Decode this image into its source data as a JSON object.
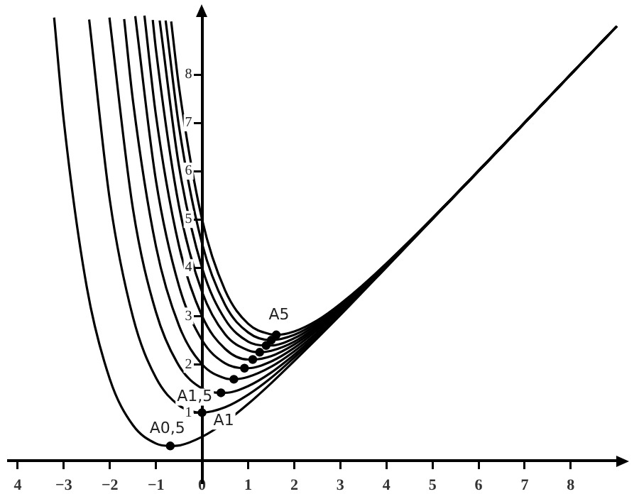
{
  "chart_data": {
    "type": "line",
    "xlim": [
      -4.2,
      9.05
    ],
    "ylim": [
      -0.45,
      9.25
    ],
    "xticks": [
      {
        "value": -4,
        "label": "4"
      },
      {
        "value": -3,
        "label": "−3"
      },
      {
        "value": -2,
        "label": "−2"
      },
      {
        "value": -1,
        "label": "−1"
      },
      0,
      1,
      2,
      3,
      4,
      5,
      6,
      7,
      8
    ],
    "yticks": [
      1,
      2,
      3,
      4,
      5,
      6,
      7,
      8
    ],
    "grid": false,
    "legend": false,
    "line_style": "solid",
    "series": [
      {
        "color": "#000000",
        "x": [
          -3.21,
          -3,
          -2.5,
          -2,
          -1.5,
          -1,
          -0.69,
          -0.5,
          0,
          0.5,
          1,
          1.5,
          2,
          2.5,
          3,
          4,
          9
        ],
        "values": [
          9.18,
          7.04,
          3.59,
          1.69,
          0.74,
          0.36,
          0.31,
          0.32,
          0.5,
          0.8,
          1.18,
          1.61,
          2.07,
          2.54,
          3.02,
          4.01,
          9
        ]
      },
      {
        "color": "#000000",
        "x": [
          -2.45,
          -2,
          -1.5,
          -1,
          -0.5,
          0,
          0.5,
          1,
          1.5,
          2,
          2.5,
          3,
          4,
          9
        ],
        "values": [
          9.14,
          5.39,
          2.98,
          1.72,
          1.15,
          1,
          1.11,
          1.37,
          1.72,
          2.14,
          2.58,
          3.05,
          4.02,
          9
        ]
      },
      {
        "color": "#000000",
        "x": [
          -2.01,
          -1.5,
          -1,
          -0.5,
          0,
          0.41,
          0.5,
          1,
          1.5,
          2,
          2.5,
          3,
          4,
          9
        ],
        "values": [
          9.18,
          5.22,
          3.08,
          1.97,
          1.5,
          1.41,
          1.41,
          1.55,
          1.83,
          2.2,
          2.62,
          3.07,
          4.03,
          9
        ]
      },
      {
        "color": "#000000",
        "x": [
          -1.69,
          -1.5,
          -1,
          -0.5,
          0,
          0.5,
          0.69,
          1,
          1.5,
          2,
          2.5,
          3,
          4,
          9
        ],
        "values": [
          9.15,
          7.46,
          4.44,
          2.8,
          2,
          1.71,
          1.69,
          1.74,
          1.95,
          2.27,
          2.66,
          3.1,
          4.04,
          9
        ]
      },
      {
        "color": "#000000",
        "x": [
          -1.45,
          -1,
          -0.5,
          0,
          0.5,
          0.92,
          1,
          1.5,
          2,
          2.5,
          3,
          4,
          9
        ],
        "values": [
          9.21,
          5.8,
          3.62,
          2.5,
          2.02,
          1.92,
          1.92,
          2.06,
          2.34,
          2.71,
          3.12,
          4.05,
          9
        ]
      },
      {
        "color": "#000000",
        "x": [
          -1.25,
          -1,
          -0.5,
          0,
          0.5,
          1,
          1.1,
          1.5,
          2,
          2.5,
          3,
          4,
          9
        ],
        "values": [
          9.22,
          7.15,
          4.45,
          3,
          2.32,
          2.1,
          2.1,
          2.17,
          2.41,
          2.75,
          3.15,
          4.05,
          9
        ]
      },
      {
        "color": "#000000",
        "x": [
          -1.07,
          -1,
          -0.5,
          0,
          0.5,
          1,
          1.25,
          1.5,
          2,
          2.5,
          3,
          4,
          9
        ],
        "values": [
          9.13,
          8.51,
          5.27,
          3.5,
          2.62,
          2.29,
          2.25,
          2.28,
          2.47,
          2.79,
          3.17,
          4.06,
          9
        ]
      },
      {
        "color": "#000000",
        "x": [
          -0.92,
          -0.5,
          0,
          0.5,
          1,
          1.39,
          1.5,
          2,
          2.5,
          3,
          4,
          9
        ],
        "values": [
          9.12,
          6.1,
          4,
          2.93,
          2.47,
          2.39,
          2.39,
          2.54,
          2.83,
          3.2,
          4.07,
          9
        ]
      },
      {
        "color": "#000000",
        "x": [
          -0.79,
          -0.5,
          0,
          0.5,
          1,
          1.5,
          2,
          2.5,
          3,
          4,
          9
        ],
        "values": [
          9.12,
          6.92,
          4.5,
          3.23,
          2.66,
          2.5,
          2.61,
          2.87,
          3.22,
          4.08,
          9
        ]
      },
      {
        "color": "#000000",
        "x": [
          -0.67,
          -0.5,
          0,
          0.5,
          1,
          1.5,
          1.61,
          2,
          2.5,
          3,
          4,
          9
        ],
        "values": [
          9.1,
          7.74,
          5,
          3.53,
          2.84,
          2.62,
          2.61,
          2.68,
          2.91,
          3.25,
          4.09,
          9
        ]
      },
      {
        "type": "scatter",
        "marker": "circle",
        "color": "#000000",
        "x": [
          -0.69,
          0,
          0.41,
          0.69,
          0.92,
          1.1,
          1.25,
          1.39,
          1.5,
          1.61
        ],
        "values": [
          0.31,
          1,
          1.41,
          1.69,
          1.92,
          2.1,
          2.25,
          2.39,
          2.5,
          2.61
        ]
      }
    ],
    "annotations": [
      {
        "text": "A0,5",
        "x": -0.69,
        "y": 0.31
      },
      {
        "text": "A1",
        "x": 0,
        "y": 1
      },
      {
        "text": "A1,5",
        "x": 0.41,
        "y": 1.41
      },
      {
        "text": "A5",
        "x": 1.61,
        "y": 2.61
      }
    ]
  }
}
